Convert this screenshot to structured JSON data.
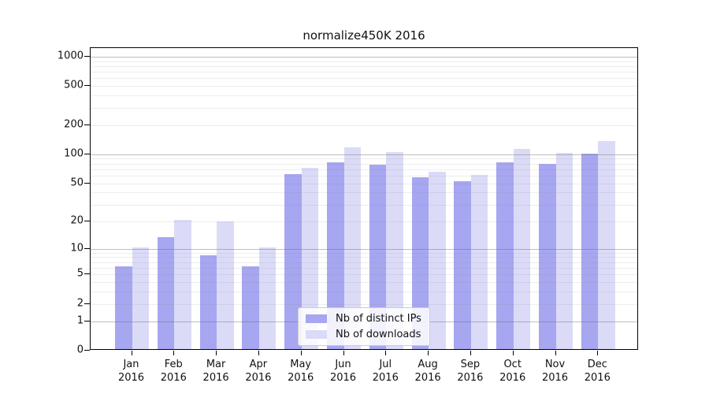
{
  "title": "normalize450K 2016",
  "chart_data": {
    "type": "bar",
    "title": "normalize450K 2016",
    "y_scale": "log10(1+y)",
    "grid": "horizontal major (1,10,100,1000) + faint minor (2-9 per decade)",
    "legend_position": "lower center (inside plot)",
    "ylim": [
      0,
      1225
    ],
    "y_ticks": [
      0,
      1,
      2,
      5,
      10,
      20,
      50,
      100,
      200,
      500,
      1000
    ],
    "categories": [
      "Jan",
      "Feb",
      "Mar",
      "Apr",
      "May",
      "Jun",
      "Jul",
      "Aug",
      "Sep",
      "Oct",
      "Nov",
      "Dec"
    ],
    "x_tick_second_line": "2016",
    "series": [
      {
        "name": "Nb of distinct IPs",
        "color": "#a6a6f1",
        "values": [
          6,
          13,
          8,
          6,
          60,
          80,
          75,
          56,
          51,
          80,
          77,
          98
        ]
      },
      {
        "name": "Nb of downloads",
        "color": "#dbdbf8",
        "values": [
          10,
          20,
          19,
          10,
          70,
          113,
          102,
          63,
          59,
          110,
          100,
          133
        ]
      }
    ]
  }
}
